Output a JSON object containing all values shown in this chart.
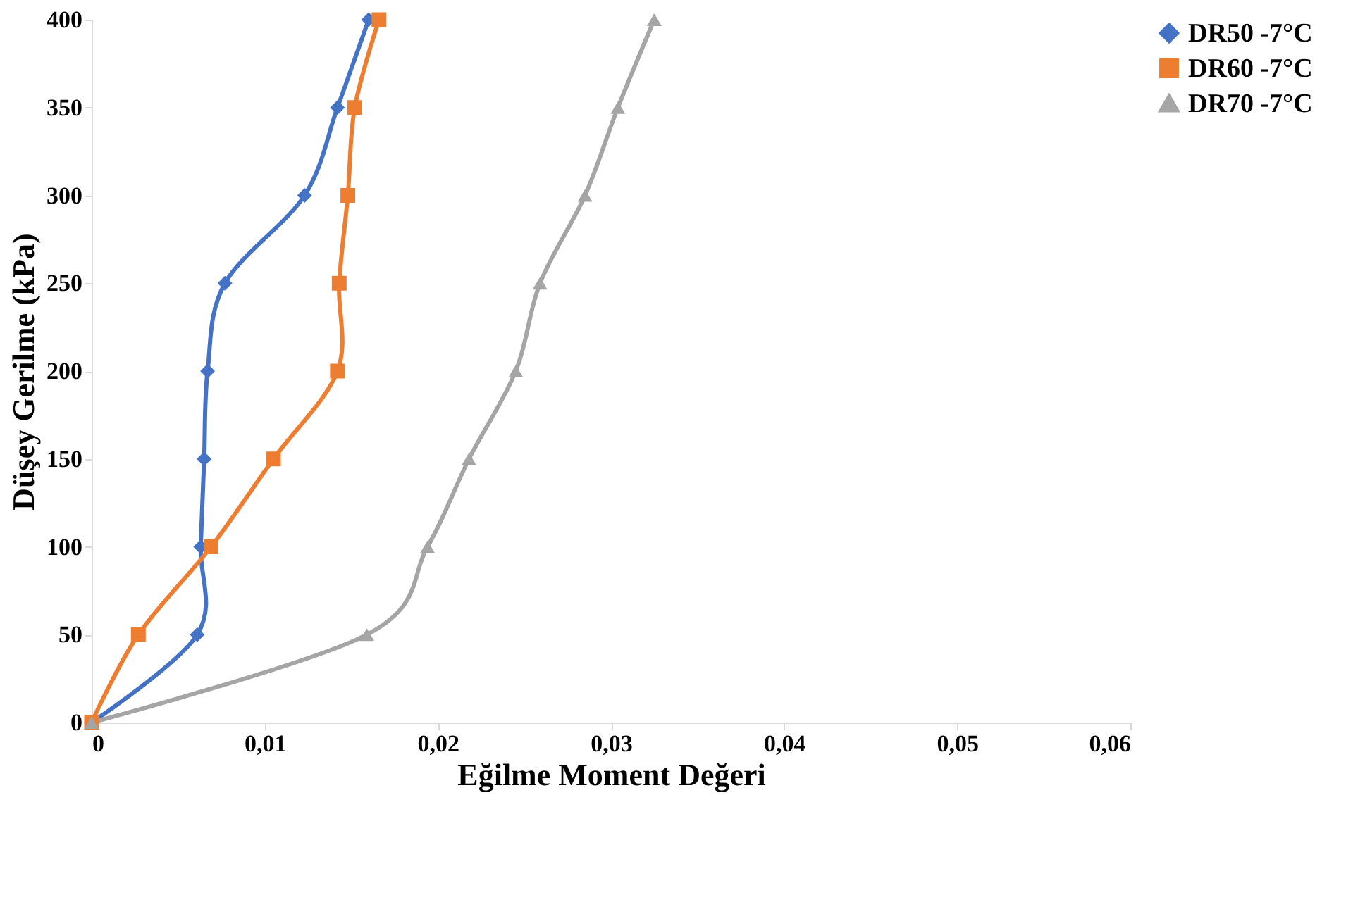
{
  "chart_data": {
    "type": "line",
    "xlabel": "Eğilme Moment Değeri",
    "ylabel": "Düşey Gerilme (kPa)",
    "xlim": [
      0,
      0.06
    ],
    "xticks": [
      0,
      {
        "value": 0.01,
        "label": "0,01"
      },
      {
        "value": 0.02,
        "label": "0,02"
      },
      {
        "value": 0.03,
        "label": "0,03"
      },
      {
        "value": 0.04,
        "label": "0,04"
      },
      {
        "value": 0.05,
        "label": "0,05"
      },
      {
        "value": 0.06,
        "label": "0,06"
      }
    ],
    "ylim": [
      0,
      400
    ],
    "yticks": [
      0,
      50,
      100,
      150,
      200,
      250,
      300,
      350,
      400
    ],
    "grid": false,
    "legend": "right",
    "line_style": "solid",
    "series": [
      {
        "name": "DR50 -7°C",
        "color": "#4472c4",
        "marker": "diamond",
        "x": [
          0,
          0.0061,
          0.0063,
          0.0065,
          0.0067,
          0.0077,
          0.0123,
          0.0142,
          0.016
        ],
        "values": [
          0,
          50,
          100,
          150,
          200,
          250,
          300,
          350,
          400
        ]
      },
      {
        "name": "DR60 -7°C",
        "color": "#ed7d31",
        "marker": "square",
        "x": [
          0,
          0.0027,
          0.0069,
          0.0105,
          0.0142,
          0.0143,
          0.0148,
          0.0152,
          0.0166
        ],
        "values": [
          0,
          50,
          100,
          150,
          200,
          250,
          300,
          350,
          400
        ]
      },
      {
        "name": "DR70 -7°C",
        "color": "#a5a5a5",
        "marker": "triangle",
        "x": [
          0,
          0.0159,
          0.0194,
          0.0218,
          0.0245,
          0.0259,
          0.0285,
          0.0304,
          0.0325
        ],
        "values": [
          0,
          50,
          100,
          150,
          200,
          250,
          300,
          350,
          400
        ]
      }
    ]
  }
}
